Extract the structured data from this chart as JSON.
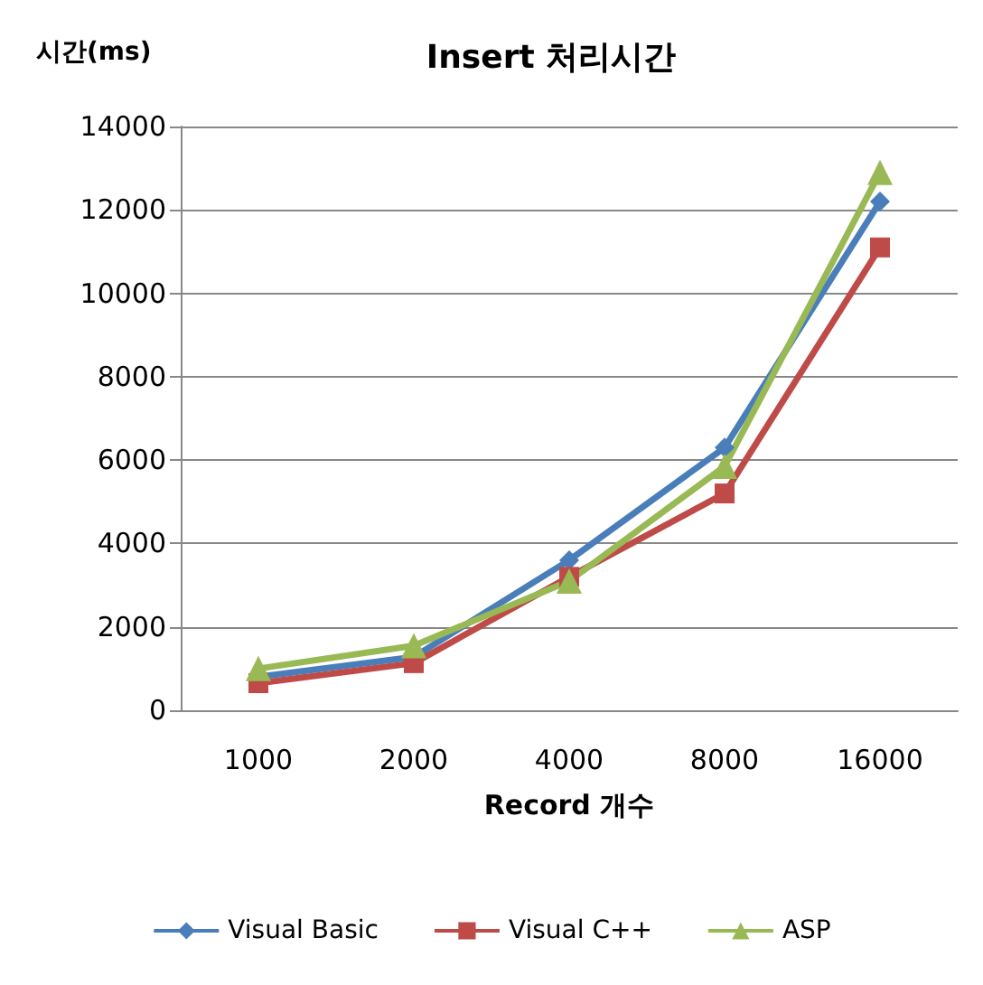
{
  "chart_data": {
    "type": "line",
    "title": "Insert 처리시간",
    "xlabel": "Record 개수",
    "ylabel": "시간(ms)",
    "categories": [
      "1000",
      "2000",
      "4000",
      "8000",
      "16000"
    ],
    "series": [
      {
        "name": "Visual Basic",
        "color": "#4a7ebb",
        "marker": "diamond",
        "values": [
          800,
          1280,
          3600,
          6300,
          12200
        ]
      },
      {
        "name": "Visual C++",
        "color": "#be4b48",
        "marker": "square",
        "values": [
          650,
          1130,
          3200,
          5200,
          11100
        ]
      },
      {
        "name": "ASP",
        "color": "#98b954",
        "marker": "triangle",
        "values": [
          1000,
          1550,
          3100,
          5850,
          12900
        ]
      }
    ],
    "ylim": [
      0,
      14000
    ],
    "yticks": [
      0,
      2000,
      4000,
      6000,
      8000,
      10000,
      12000,
      14000
    ],
    "grid": "y",
    "legend": "bottom",
    "line_style": "solid"
  }
}
